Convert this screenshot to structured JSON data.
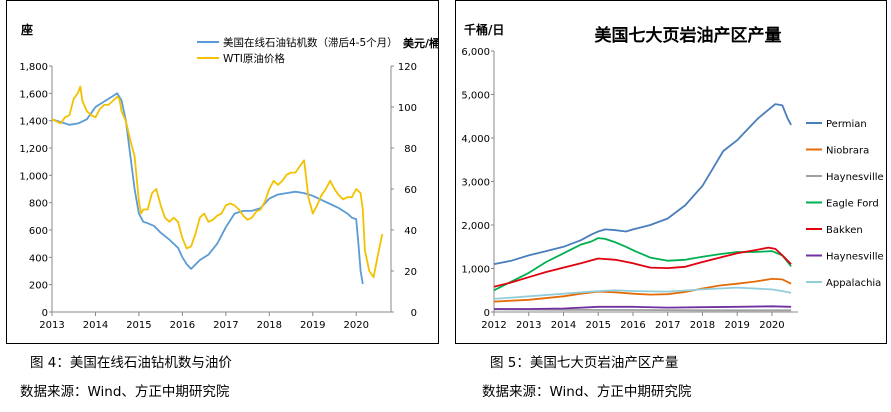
{
  "figure4": {
    "caption": "图 4：美国在线石油钻机数与油价",
    "source": "数据来源：Wind、方正中期研究院"
  },
  "figure5": {
    "caption": "图 5：美国七大页岩油产区产量",
    "source": "数据来源：Wind、方正中期研究院"
  },
  "chart_data": [
    {
      "type": "line",
      "title": "",
      "left_axis_label": "座",
      "right_axis_label": "美元/桶",
      "ylim_left": [
        0,
        1800
      ],
      "yticks_left": [
        "0",
        "200",
        "400",
        "600",
        "800",
        "1,000",
        "1,200",
        "1,400",
        "1,600",
        "1,800"
      ],
      "ylim_right": [
        0,
        120
      ],
      "yticks_right": [
        "0",
        "20",
        "40",
        "60",
        "80",
        "100",
        "120"
      ],
      "xlim": [
        2013.0,
        2020.8
      ],
      "xticks": [
        "2013",
        "2014",
        "2015",
        "2016",
        "2017",
        "2018",
        "2019",
        "2020"
      ],
      "series": [
        {
          "name": "美国在线石油钻机数（滞后4-5个月）",
          "axis": "left",
          "color": "#5b9bd5",
          "x": [
            2013.0,
            2013.2,
            2013.4,
            2013.6,
            2013.8,
            2014.0,
            2014.2,
            2014.4,
            2014.5,
            2014.6,
            2014.7,
            2014.8,
            2014.9,
            2015.0,
            2015.1,
            2015.2,
            2015.35,
            2015.5,
            2015.7,
            2015.9,
            2016.0,
            2016.1,
            2016.2,
            2016.4,
            2016.6,
            2016.8,
            2017.0,
            2017.2,
            2017.4,
            2017.6,
            2017.8,
            2018.0,
            2018.2,
            2018.4,
            2018.6,
            2018.8,
            2019.0,
            2019.2,
            2019.4,
            2019.6,
            2019.8,
            2019.9,
            2020.0,
            2020.05,
            2020.1,
            2020.15
          ],
          "values": [
            1410,
            1390,
            1370,
            1380,
            1410,
            1500,
            1540,
            1580,
            1600,
            1550,
            1400,
            1150,
            900,
            720,
            660,
            650,
            630,
            580,
            530,
            470,
            400,
            350,
            315,
            380,
            420,
            500,
            620,
            720,
            740,
            740,
            760,
            830,
            860,
            870,
            880,
            870,
            850,
            820,
            790,
            760,
            720,
            690,
            680,
            500,
            300,
            205
          ]
        },
        {
          "name": "WTI原油价格",
          "axis": "right",
          "color": "#f2c200",
          "x": [
            2013.0,
            2013.1,
            2013.2,
            2013.3,
            2013.4,
            2013.5,
            2013.6,
            2013.65,
            2013.7,
            2013.8,
            2013.9,
            2014.0,
            2014.1,
            2014.2,
            2014.3,
            2014.4,
            2014.5,
            2014.55,
            2014.6,
            2014.7,
            2014.8,
            2014.9,
            2015.0,
            2015.05,
            2015.1,
            2015.2,
            2015.3,
            2015.4,
            2015.5,
            2015.6,
            2015.7,
            2015.8,
            2015.9,
            2016.0,
            2016.1,
            2016.2,
            2016.3,
            2016.4,
            2016.5,
            2016.6,
            2016.7,
            2016.8,
            2016.9,
            2017.0,
            2017.1,
            2017.2,
            2017.3,
            2017.4,
            2017.5,
            2017.6,
            2017.7,
            2017.8,
            2017.9,
            2018.0,
            2018.1,
            2018.2,
            2018.3,
            2018.4,
            2018.5,
            2018.6,
            2018.7,
            2018.8,
            2018.9,
            2019.0,
            2019.1,
            2019.2,
            2019.3,
            2019.4,
            2019.5,
            2019.6,
            2019.7,
            2019.8,
            2019.9,
            2020.0,
            2020.1,
            2020.15,
            2020.2,
            2020.3,
            2020.4,
            2020.5,
            2020.6
          ],
          "values": [
            94,
            93,
            92,
            95,
            96,
            104,
            107,
            110,
            103,
            98,
            96,
            95,
            99,
            101,
            101,
            103,
            105,
            104,
            98,
            93,
            84,
            76,
            54,
            48,
            50,
            50,
            58,
            60,
            52,
            46,
            44,
            46,
            44,
            36,
            31,
            32,
            38,
            46,
            48,
            44,
            45,
            47,
            48,
            52,
            53,
            52,
            50,
            47,
            45,
            46,
            49,
            50,
            54,
            60,
            64,
            62,
            64,
            67,
            68,
            68,
            71,
            74,
            56,
            48,
            52,
            57,
            60,
            64,
            60,
            57,
            55,
            56,
            56,
            60,
            58,
            50,
            30,
            20,
            17,
            28,
            38
          ]
        }
      ]
    },
    {
      "type": "line",
      "title": "美国七大页岩油产区产量",
      "ylabel": "千桶/日",
      "ylim": [
        0,
        6000
      ],
      "yticks": [
        "0",
        "1,000",
        "2,000",
        "3,000",
        "4,000",
        "5,000",
        "6,000"
      ],
      "xlim": [
        2012.0,
        2020.75
      ],
      "xticks": [
        "2012",
        "2013",
        "2014",
        "2015",
        "2016",
        "2017",
        "2018",
        "2019",
        "2020"
      ],
      "series": [
        {
          "name": "Permian",
          "color": "#4a7ebb",
          "x": [
            2012.0,
            2012.5,
            2013.0,
            2013.5,
            2014.0,
            2014.5,
            2014.8,
            2015.0,
            2015.2,
            2015.5,
            2015.8,
            2016.0,
            2016.5,
            2017.0,
            2017.5,
            2018.0,
            2018.3,
            2018.6,
            2019.0,
            2019.3,
            2019.6,
            2019.9,
            2020.1,
            2020.3,
            2020.45,
            2020.55
          ],
          "values": [
            1100,
            1180,
            1300,
            1400,
            1500,
            1650,
            1780,
            1850,
            1900,
            1880,
            1850,
            1900,
            2000,
            2150,
            2450,
            2900,
            3300,
            3700,
            3950,
            4200,
            4450,
            4650,
            4780,
            4750,
            4450,
            4300
          ]
        },
        {
          "name": "Niobrara",
          "color": "#e36c09",
          "x": [
            2012.0,
            2013.0,
            2014.0,
            2014.5,
            2015.0,
            2015.5,
            2016.0,
            2016.5,
            2017.0,
            2017.5,
            2018.0,
            2018.5,
            2019.0,
            2019.5,
            2020.0,
            2020.3,
            2020.55
          ],
          "values": [
            240,
            280,
            360,
            420,
            470,
            450,
            420,
            400,
            410,
            460,
            540,
            610,
            650,
            700,
            760,
            750,
            650
          ]
        },
        {
          "name": "Haynesville",
          "color": "#a0a0a0",
          "x": [
            2012.0,
            2014.0,
            2016.0,
            2018.0,
            2020.0,
            2020.55
          ],
          "values": [
            60,
            50,
            45,
            40,
            40,
            38
          ]
        },
        {
          "name": "Eagle Ford",
          "color": "#00b050",
          "x": [
            2012.0,
            2012.5,
            2013.0,
            2013.5,
            2014.0,
            2014.5,
            2014.8,
            2015.0,
            2015.2,
            2015.5,
            2015.8,
            2016.0,
            2016.5,
            2017.0,
            2017.5,
            2018.0,
            2018.5,
            2019.0,
            2019.5,
            2020.0,
            2020.3,
            2020.55
          ],
          "values": [
            500,
            700,
            900,
            1150,
            1350,
            1550,
            1620,
            1700,
            1680,
            1600,
            1500,
            1420,
            1250,
            1180,
            1200,
            1270,
            1330,
            1380,
            1380,
            1400,
            1300,
            1050
          ]
        },
        {
          "name": "Bakken",
          "color": "#e0000f",
          "x": [
            2012.0,
            2012.5,
            2013.0,
            2013.5,
            2014.0,
            2014.5,
            2015.0,
            2015.5,
            2016.0,
            2016.5,
            2017.0,
            2017.5,
            2018.0,
            2018.5,
            2019.0,
            2019.5,
            2019.9,
            2020.1,
            2020.3,
            2020.55
          ],
          "values": [
            580,
            680,
            800,
            920,
            1020,
            1120,
            1230,
            1200,
            1120,
            1020,
            1010,
            1040,
            1150,
            1250,
            1350,
            1420,
            1480,
            1450,
            1300,
            1100
          ]
        },
        {
          "name": "Haynesville",
          "color": "#7030a0",
          "x": [
            2012.0,
            2013.0,
            2014.0,
            2015.0,
            2016.0,
            2017.0,
            2018.0,
            2019.0,
            2020.0,
            2020.55
          ],
          "values": [
            70,
            70,
            80,
            120,
            120,
            100,
            110,
            120,
            130,
            120
          ]
        },
        {
          "name": "Appalachia",
          "color": "#92cddc",
          "x": [
            2012.0,
            2013.0,
            2014.0,
            2015.0,
            2015.5,
            2016.0,
            2017.0,
            2018.0,
            2019.0,
            2020.0,
            2020.3,
            2020.55
          ],
          "values": [
            300,
            360,
            420,
            480,
            500,
            480,
            470,
            520,
            560,
            520,
            480,
            440
          ]
        }
      ]
    }
  ]
}
